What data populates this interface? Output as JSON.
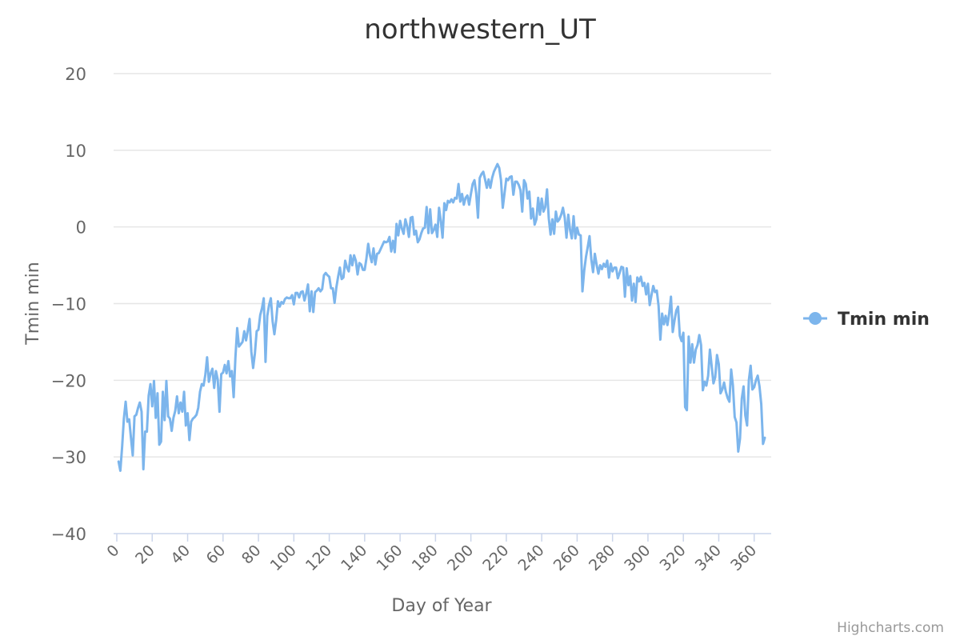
{
  "chart_data": {
    "type": "line",
    "title": "northwestern_UT",
    "xlabel": "Day of Year",
    "ylabel": "Tmin min",
    "xlim": [
      0,
      366
    ],
    "ylim": [
      -40,
      20
    ],
    "x_ticks": [
      0,
      20,
      40,
      60,
      80,
      100,
      120,
      140,
      160,
      180,
      200,
      220,
      240,
      260,
      280,
      300,
      320,
      340,
      360
    ],
    "y_ticks": [
      20,
      10,
      0,
      -10,
      -20,
      -30,
      -40
    ],
    "y_tick_labels": [
      "20",
      "10",
      "0",
      "−10",
      "−20",
      "−30",
      "−40"
    ],
    "grid": true,
    "legend_position": "right",
    "credits": "Highcharts.com",
    "colors": {
      "series": "#7cb5ec",
      "grid": "#e6e6e6",
      "axis": "#ccd6eb"
    },
    "series": [
      {
        "name": "Tmin min",
        "x_start": 1,
        "values": [
          -30.6,
          -31.8,
          -28.7,
          -25.0,
          -22.8,
          -25.4,
          -25.1,
          -27.5,
          -29.8,
          -24.7,
          -24.5,
          -23.6,
          -22.9,
          -24.1,
          -31.6,
          -26.7,
          -26.7,
          -22.0,
          -20.5,
          -23.4,
          -20.1,
          -24.9,
          -21.7,
          -28.4,
          -28.0,
          -21.5,
          -25.2,
          -20.1,
          -24.7,
          -25.0,
          -26.6,
          -24.9,
          -24.0,
          -22.1,
          -24.3,
          -22.9,
          -24.1,
          -21.5,
          -25.9,
          -24.3,
          -27.8,
          -25.4,
          -25.0,
          -24.8,
          -24.5,
          -23.6,
          -21.5,
          -20.5,
          -20.7,
          -19.3,
          -17.0,
          -20.2,
          -19.1,
          -18.5,
          -21.0,
          -18.8,
          -19.9,
          -24.1,
          -19.2,
          -19.0,
          -18.0,
          -19.1,
          -17.5,
          -19.5,
          -18.8,
          -22.2,
          -17.0,
          -13.2,
          -15.6,
          -15.3,
          -15.0,
          -13.6,
          -14.8,
          -13.5,
          -12.0,
          -16.3,
          -18.4,
          -16.5,
          -13.6,
          -13.4,
          -11.5,
          -10.6,
          -9.3,
          -17.6,
          -11.6,
          -10.2,
          -9.3,
          -12.3,
          -14.0,
          -12.2,
          -9.7,
          -10.4,
          -9.8,
          -10.0,
          -9.4,
          -9.2,
          -9.3,
          -9.3,
          -8.9,
          -10.1,
          -8.6,
          -8.6,
          -9.2,
          -8.5,
          -8.4,
          -9.6,
          -8.7,
          -7.5,
          -11.0,
          -8.4,
          -11.1,
          -8.5,
          -8.3,
          -8.0,
          -8.4,
          -8.1,
          -6.3,
          -6.0,
          -6.3,
          -6.5,
          -8.0,
          -8.0,
          -9.9,
          -7.9,
          -6.5,
          -5.3,
          -6.8,
          -6.6,
          -4.4,
          -5.3,
          -5.8,
          -3.7,
          -5.0,
          -3.7,
          -4.4,
          -6.2,
          -4.7,
          -4.9,
          -5.6,
          -5.6,
          -4.1,
          -2.2,
          -3.7,
          -4.6,
          -2.8,
          -4.9,
          -3.5,
          -3.4,
          -2.9,
          -2.4,
          -1.9,
          -2.0,
          -1.9,
          -1.3,
          -3.2,
          -1.8,
          -3.3,
          0.4,
          -1.1,
          0.8,
          -0.2,
          -0.9,
          1.0,
          0.1,
          -1.3,
          1.2,
          1.3,
          -1.0,
          -0.5,
          -2.0,
          -1.6,
          -0.8,
          -0.2,
          -0.1,
          2.6,
          -0.8,
          2.3,
          -0.8,
          -0.4,
          0.3,
          -1.3,
          2.5,
          0.8,
          -1.4,
          3.1,
          2.2,
          3.4,
          3.2,
          3.6,
          3.2,
          3.8,
          3.7,
          5.6,
          3.3,
          4.3,
          2.9,
          3.8,
          4.1,
          2.9,
          4.3,
          5.6,
          6.1,
          4.4,
          1.2,
          6.4,
          6.9,
          7.2,
          6.2,
          5.1,
          6.2,
          5.1,
          6.4,
          7.2,
          7.7,
          8.2,
          7.7,
          6.1,
          2.5,
          4.4,
          6.3,
          6.1,
          6.5,
          6.6,
          4.2,
          5.9,
          5.9,
          5.5,
          4.8,
          2.0,
          6.1,
          5.6,
          3.7,
          4.6,
          1.1,
          2.4,
          0.3,
          1.0,
          3.8,
          1.6,
          3.7,
          2.0,
          2.6,
          4.9,
          1.1,
          -1.0,
          1.0,
          -0.9,
          2.0,
          0.7,
          1.0,
          1.6,
          2.5,
          1.2,
          -1.4,
          1.6,
          -0.4,
          -1.5,
          1.4,
          -1.5,
          -0.1,
          -1.0,
          -1.1,
          -8.4,
          -5.7,
          -3.9,
          -2.6,
          -1.2,
          -4.2,
          -5.9,
          -3.5,
          -4.9,
          -6.1,
          -5.0,
          -5.5,
          -4.8,
          -5.2,
          -4.4,
          -6.6,
          -4.8,
          -5.8,
          -5.3,
          -5.3,
          -6.7,
          -6.0,
          -5.2,
          -5.3,
          -9.1,
          -5.4,
          -7.6,
          -6.4,
          -9.6,
          -7.4,
          -9.8,
          -6.6,
          -7.1,
          -6.5,
          -7.7,
          -7.3,
          -8.8,
          -7.4,
          -10.2,
          -8.9,
          -7.7,
          -8.5,
          -8.3,
          -10.3,
          -14.7,
          -11.3,
          -12.7,
          -11.6,
          -12.8,
          -11.3,
          -9.1,
          -13.7,
          -12.2,
          -10.9,
          -10.4,
          -14.2,
          -14.9,
          -13.8,
          -23.5,
          -23.9,
          -14.3,
          -17.7,
          -15.3,
          -17.7,
          -16.0,
          -15.4,
          -14.1,
          -15.4,
          -21.3,
          -20.2,
          -20.7,
          -19.4,
          -16.0,
          -18.2,
          -20.4,
          -19.6,
          -16.7,
          -17.9,
          -21.7,
          -21.2,
          -20.3,
          -21.5,
          -22.3,
          -22.8,
          -18.6,
          -20.7,
          -24.8,
          -25.5,
          -29.3,
          -27.6,
          -22.4,
          -20.8,
          -24.6,
          -25.9,
          -20.0,
          -18.1,
          -21.2,
          -20.9,
          -20.0,
          -19.4,
          -20.8,
          -23.1,
          -28.3,
          -27.5
        ]
      }
    ]
  }
}
